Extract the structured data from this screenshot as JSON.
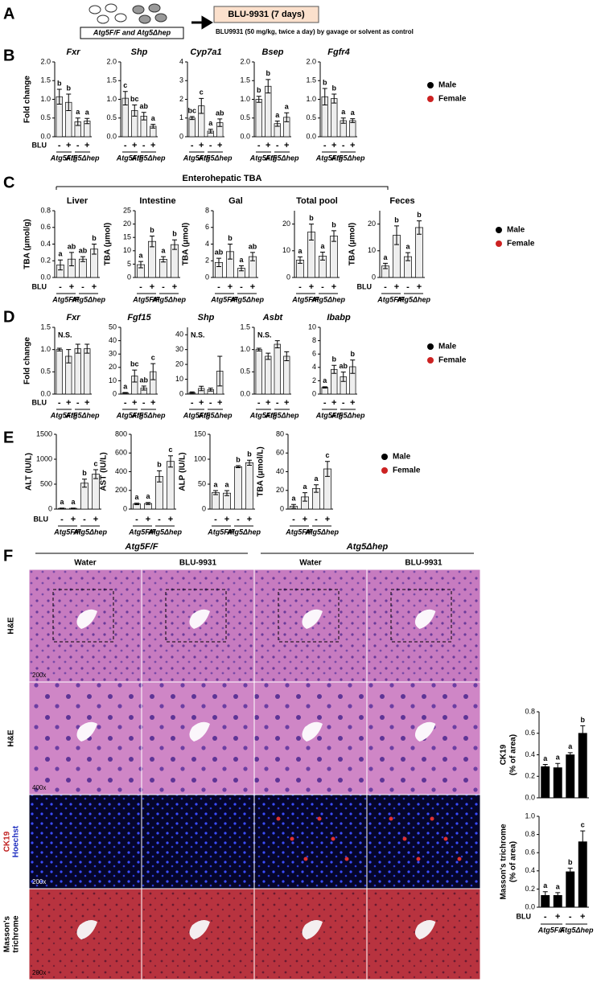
{
  "panel_labels": [
    "A",
    "B",
    "C",
    "D",
    "E",
    "F"
  ],
  "panel_a": {
    "mice_label": "Atg5F/F and Atg5Δhep",
    "treatment": "BLU-9931 (7 days)",
    "description": "BLU9931 (50 mg/kg, twice a day) by gavage or solvent as control"
  },
  "enterohepatic_label": "Enterohepatic TBA",
  "legends": [
    [
      {
        "name": "Male",
        "color": "#000000"
      },
      {
        "name": "Female",
        "color": "#cc2222"
      }
    ],
    [
      {
        "name": "Male",
        "color": "#000000"
      },
      {
        "name": "Female",
        "color": "#cc2222"
      }
    ],
    [
      {
        "name": "Male",
        "color": "#000000"
      },
      {
        "name": "Female",
        "color": "#cc2222"
      }
    ],
    [
      {
        "name": "Male",
        "color": "#000000"
      },
      {
        "name": "Female",
        "color": "#cc2222"
      }
    ]
  ],
  "histology": {
    "groups": [
      "Atg5F/F",
      "Atg5Δhep"
    ],
    "columns": [
      "Water",
      "BLU-9931",
      "Water",
      "BLU-9931"
    ],
    "rows": [
      {
        "label": [
          "H&E"
        ],
        "magnification": "200x"
      },
      {
        "label": [
          "H&E"
        ],
        "magnification": "400x"
      },
      {
        "label": [
          "CK19",
          "Hoechst"
        ],
        "magnification": "200x"
      },
      {
        "label": [
          "Masson's",
          "trichrome"
        ],
        "magnification": "200x"
      }
    ]
  },
  "chart_data": [
    {
      "type": "bar",
      "title": "Fxr",
      "ylabel": [
        "Fold change"
      ],
      "xlabel": "BLU",
      "categories": [
        "-",
        "+",
        "-",
        "+"
      ],
      "groups": [
        "Atg5F/F",
        "Atg5Δhep"
      ],
      "ylim": [
        0,
        2
      ],
      "yticks": [
        {
          "value": 0,
          "label": "0.0"
        },
        {
          "value": 0.5,
          "label": "0.5"
        },
        {
          "value": 1,
          "label": "1.0"
        },
        {
          "value": 1.5,
          "label": "1.5"
        },
        {
          "value": 2,
          "label": "2.0"
        }
      ],
      "values": [
        1.07,
        0.92,
        0.4,
        0.42
      ],
      "errors": [
        0.2,
        0.22,
        0.1,
        0.07
      ],
      "annotations": [
        "b",
        "b",
        "a",
        "a"
      ],
      "color": "#eeeeee"
    },
    {
      "type": "bar",
      "title": "Shp",
      "categories": [
        "-",
        "+",
        "-",
        "+"
      ],
      "groups": [
        "Atg5F/F",
        "Atg5Δhep"
      ],
      "ylim": [
        0,
        2
      ],
      "yticks": [
        {
          "value": 0,
          "label": "0.0"
        },
        {
          "value": 0.5,
          "label": "0.5"
        },
        {
          "value": 1,
          "label": "1.0"
        },
        {
          "value": 1.5,
          "label": "1.5"
        },
        {
          "value": 2,
          "label": "2.0"
        }
      ],
      "values": [
        1.03,
        0.7,
        0.55,
        0.28
      ],
      "errors": [
        0.18,
        0.15,
        0.1,
        0.05
      ],
      "annotations": [
        "c",
        "bc",
        "ab",
        "a"
      ],
      "color": "#eeeeee"
    },
    {
      "type": "bar",
      "title": "Cyp7a1",
      "categories": [
        "-",
        "+",
        "-",
        "+"
      ],
      "groups": [
        "Atg5F/F",
        "Atg5Δhep"
      ],
      "ylim": [
        0,
        4
      ],
      "yticks": [
        0,
        1,
        2,
        3,
        4
      ],
      "values": [
        1.0,
        1.65,
        0.3,
        0.75
      ],
      "errors": [
        0.08,
        0.4,
        0.1,
        0.2
      ],
      "annotations": [
        "bc",
        "c",
        "a",
        "ab"
      ],
      "color": "#eeeeee"
    },
    {
      "type": "bar",
      "title": "Bsep",
      "categories": [
        "-",
        "+",
        "-",
        "+"
      ],
      "groups": [
        "Atg5F/F",
        "Atg5Δhep"
      ],
      "ylim": [
        0,
        2
      ],
      "yticks": [
        {
          "value": 0,
          "label": "0.0"
        },
        {
          "value": 0.5,
          "label": "0.5"
        },
        {
          "value": 1,
          "label": "1.0"
        },
        {
          "value": 1.5,
          "label": "1.5"
        },
        {
          "value": 2,
          "label": "2.0"
        }
      ],
      "values": [
        1.0,
        1.35,
        0.35,
        0.52
      ],
      "errors": [
        0.08,
        0.18,
        0.07,
        0.12
      ],
      "annotations": [
        "b",
        "b",
        "a",
        "a"
      ],
      "color": "#eeeeee"
    },
    {
      "type": "bar",
      "title": "Fgfr4",
      "categories": [
        "-",
        "+",
        "-",
        "+"
      ],
      "groups": [
        "Atg5F/F",
        "Atg5Δhep"
      ],
      "ylim": [
        0,
        2
      ],
      "yticks": [
        {
          "value": 0,
          "label": "0.0"
        },
        {
          "value": 0.5,
          "label": "0.5"
        },
        {
          "value": 1,
          "label": "1.0"
        },
        {
          "value": 1.5,
          "label": "1.5"
        },
        {
          "value": 2,
          "label": "2.0"
        }
      ],
      "values": [
        1.07,
        1.02,
        0.43,
        0.43
      ],
      "errors": [
        0.22,
        0.12,
        0.07,
        0.05
      ],
      "annotations": [
        "b",
        "b",
        "a",
        "a"
      ],
      "color": "#eeeeee"
    },
    {
      "type": "bar",
      "title": "Liver",
      "ylabel": [
        "TBA (μmol/g)"
      ],
      "xlabel": "BLU",
      "categories": [
        "-",
        "+",
        "-",
        "+"
      ],
      "groups": [
        "Atg5F/F",
        "Atg5Δhep"
      ],
      "ylim": [
        0,
        0.8
      ],
      "yticks": [
        {
          "value": 0,
          "label": "0.0"
        },
        {
          "value": 0.2,
          "label": "0.2"
        },
        {
          "value": 0.4,
          "label": "0.4"
        },
        {
          "value": 0.6,
          "label": "0.6"
        },
        {
          "value": 0.8,
          "label": "0.8"
        }
      ],
      "values": [
        0.15,
        0.22,
        0.22,
        0.34
      ],
      "errors": [
        0.06,
        0.08,
        0.03,
        0.06
      ],
      "annotations": [
        "a",
        "ab",
        "ab",
        "b"
      ],
      "color": "#eeeeee"
    },
    {
      "type": "bar",
      "title": "Intestine",
      "ylabel": [
        "TBA (μmol)"
      ],
      "categories": [
        "-",
        "+",
        "-",
        "+"
      ],
      "groups": [
        "Atg5F/F",
        "Atg5Δhep"
      ],
      "ylim": [
        0,
        25
      ],
      "yticks": [
        0,
        5,
        10,
        15,
        20,
        25
      ],
      "values": [
        4.8,
        13.5,
        6.8,
        12.3
      ],
      "errors": [
        1.2,
        2,
        1,
        1.8
      ],
      "annotations": [
        "a",
        "b",
        "a",
        "b"
      ],
      "color": "#eeeeee"
    },
    {
      "type": "bar",
      "title": "Gal",
      "ylabel": [
        "TBA (μmol)"
      ],
      "categories": [
        "-",
        "+",
        "-",
        "+"
      ],
      "groups": [
        "Atg5F/F",
        "Atg5Δhep"
      ],
      "ylim": [
        0,
        8
      ],
      "yticks": [
        0,
        2,
        4,
        6,
        8
      ],
      "values": [
        1.8,
        3.1,
        1.1,
        2.5
      ],
      "errors": [
        0.5,
        0.9,
        0.3,
        0.5
      ],
      "annotations": [
        "ab",
        "b",
        "a",
        "ab"
      ],
      "color": "#eeeeee"
    },
    {
      "type": "bar",
      "title": "Total pool",
      "categories": [
        "-",
        "+",
        "-",
        "+"
      ],
      "groups": [
        "Atg5F/F",
        "Atg5Δhep"
      ],
      "ylim": [
        0,
        25
      ],
      "yticks": [
        0,
        10,
        20
      ],
      "values": [
        6.5,
        17,
        8,
        15.5
      ],
      "errors": [
        1.2,
        3,
        1.5,
        2
      ],
      "annotations": [
        "a",
        "b",
        "a",
        "b"
      ],
      "color": "#eeeeee"
    },
    {
      "type": "bar",
      "title": "Feces",
      "ylabel": [
        "TBA (μmol)"
      ],
      "xlabel": "BLU",
      "categories": [
        "-",
        "+",
        "-",
        "+"
      ],
      "groups": [
        "Atg5F/F",
        "Atg5Δhep"
      ],
      "ylim": [
        0,
        25
      ],
      "yticks": [
        0,
        10,
        20
      ],
      "values": [
        4.3,
        15.8,
        7.8,
        18.7
      ],
      "errors": [
        1,
        3.5,
        1.5,
        2.5
      ],
      "annotations": [
        "a",
        "b",
        "a",
        "b"
      ],
      "color": "#eeeeee"
    },
    {
      "type": "bar",
      "title": "Fxr",
      "ylabel": [
        "Fold change"
      ],
      "xlabel": "BLU",
      "annotation": "N.S.",
      "categories": [
        "-",
        "+",
        "-",
        "+"
      ],
      "groups": [
        "Atg5F/F",
        "Atg5Δhep"
      ],
      "ylim": [
        0,
        1.5
      ],
      "yticks": [
        {
          "value": 0,
          "label": "0.0"
        },
        {
          "value": 0.5,
          "label": "0.5"
        },
        {
          "value": 1,
          "label": "1.0"
        },
        {
          "value": 1.5,
          "label": "1.5"
        }
      ],
      "values": [
        1.0,
        0.85,
        1.02,
        1.02
      ],
      "errors": [
        0.03,
        0.15,
        0.1,
        0.1
      ],
      "color": "#eeeeee"
    },
    {
      "type": "bar",
      "title": "Fgf15",
      "categories": [
        "-",
        "+",
        "-",
        "+"
      ],
      "groups": [
        "Atg5F/F",
        "Atg5Δhep"
      ],
      "ylim": [
        0,
        50
      ],
      "yticks": [
        0,
        10,
        20,
        30,
        40,
        50
      ],
      "values": [
        0.9,
        13.5,
        4.5,
        16.8
      ],
      "errors": [
        0.3,
        4.5,
        1.5,
        6
      ],
      "annotations": [
        "a",
        "bc",
        "ab",
        "c"
      ],
      "color": "#eeeeee"
    },
    {
      "type": "bar",
      "title": "Shp",
      "annotation": "N.S.",
      "categories": [
        "-",
        "+",
        "-",
        "+"
      ],
      "groups": [
        "Atg5F/F",
        "Atg5Δhep"
      ],
      "ylim": [
        0,
        45
      ],
      "yticks": [
        0,
        10,
        20,
        30,
        40
      ],
      "values": [
        1,
        3.8,
        3,
        15.5
      ],
      "errors": [
        0.5,
        1.5,
        1,
        10
      ],
      "color": "#eeeeee"
    },
    {
      "type": "bar",
      "title": "Asbt",
      "annotation": "N.S.",
      "categories": [
        "-",
        "+",
        "-",
        "+"
      ],
      "groups": [
        "Atg5F/F",
        "Atg5Δhep"
      ],
      "ylim": [
        0,
        1.5
      ],
      "yticks": [
        {
          "value": 0,
          "label": "0.0"
        },
        {
          "value": 0.5,
          "label": "0.5"
        },
        {
          "value": 1,
          "label": "1.0"
        },
        {
          "value": 1.5,
          "label": "1.5"
        }
      ],
      "values": [
        1.0,
        0.85,
        1.12,
        0.85
      ],
      "errors": [
        0.03,
        0.07,
        0.08,
        0.1
      ],
      "color": "#eeeeee"
    },
    {
      "type": "bar",
      "title": "Ibabp",
      "categories": [
        "-",
        "+",
        "-",
        "+"
      ],
      "groups": [
        "Atg5F/F",
        "Atg5Δhep"
      ],
      "ylim": [
        0,
        10
      ],
      "yticks": [
        0,
        2,
        4,
        6,
        8,
        10
      ],
      "values": [
        1.0,
        3.7,
        2.6,
        4.1
      ],
      "errors": [
        0.1,
        0.6,
        0.7,
        1
      ],
      "annotations": [
        "a",
        "b",
        "ab",
        "b"
      ],
      "color": "#eeeeee"
    },
    {
      "type": "bar",
      "ylabel": [
        "ALT (IU/L)"
      ],
      "xlabel": "BLU",
      "categories": [
        "-",
        "+",
        "-",
        "+"
      ],
      "groups": [
        "Atg5F/F",
        "Atg5Δhep"
      ],
      "ylim": [
        0,
        1500
      ],
      "yticks": [
        0,
        500,
        1000,
        1500
      ],
      "values": [
        15,
        15,
        520,
        700
      ],
      "errors": [
        5,
        5,
        80,
        90
      ],
      "annotations": [
        "a",
        "a",
        "b",
        "c"
      ],
      "color": "#eeeeee"
    },
    {
      "type": "bar",
      "ylabel": [
        "AST (IU/L)"
      ],
      "categories": [
        "-",
        "+",
        "-",
        "+"
      ],
      "groups": [
        "Atg5F/F",
        "Atg5Δhep"
      ],
      "ylim": [
        0,
        800
      ],
      "yticks": [
        0,
        200,
        400,
        600,
        800
      ],
      "values": [
        55,
        60,
        350,
        510
      ],
      "errors": [
        8,
        10,
        60,
        60
      ],
      "annotations": [
        "a",
        "a",
        "b",
        "c"
      ],
      "color": "#eeeeee"
    },
    {
      "type": "bar",
      "ylabel": [
        "ALP (IU/L)"
      ],
      "categories": [
        "-",
        "+",
        "-",
        "+"
      ],
      "groups": [
        "Atg5F/F",
        "Atg5Δhep"
      ],
      "ylim": [
        0,
        150
      ],
      "yticks": [
        0,
        50,
        100,
        150
      ],
      "values": [
        33,
        32,
        85,
        93
      ],
      "errors": [
        4,
        5,
        2,
        5
      ],
      "annotations": [
        "a",
        "a",
        "b",
        "b"
      ],
      "color": "#eeeeee"
    },
    {
      "type": "bar",
      "ylabel": [
        "TBA (μmol/L)"
      ],
      "categories": [
        "-",
        "+",
        "-",
        "+"
      ],
      "groups": [
        "Atg5F/F",
        "Atg5Δhep"
      ],
      "ylim": [
        0,
        80
      ],
      "yticks": [
        0,
        20,
        40,
        60,
        80
      ],
      "values": [
        3,
        13,
        22,
        43
      ],
      "errors": [
        2,
        4.5,
        4,
        8
      ],
      "annotations": [
        "a",
        "a",
        "a",
        "c"
      ],
      "color": "#eeeeee"
    },
    {
      "type": "bar",
      "ylabel": [
        "CK19",
        "(% of area)"
      ],
      "ylim": [
        0,
        0.8
      ],
      "yticks": [
        {
          "value": 0,
          "label": "0.0"
        },
        {
          "value": 0.2,
          "label": "0.2"
        },
        {
          "value": 0.4,
          "label": "0.4"
        },
        {
          "value": 0.6,
          "label": "0.6"
        },
        {
          "value": 0.8,
          "label": "0.8"
        }
      ],
      "values": [
        0.29,
        0.28,
        0.4,
        0.6
      ],
      "errors": [
        0.02,
        0.04,
        0.02,
        0.07
      ],
      "annotations": [
        "a",
        "a",
        "a",
        "b"
      ],
      "color": "#000000"
    },
    {
      "type": "bar",
      "ylabel": [
        "Masson's trichrome",
        "(% of area)"
      ],
      "xlabel": "BLU",
      "categories": [
        "-",
        "+",
        "-",
        "+"
      ],
      "groups": [
        "Atg5F/F",
        "Atg5Δhep"
      ],
      "ylim": [
        0,
        1
      ],
      "yticks": [
        {
          "value": 0,
          "label": "0.0"
        },
        {
          "value": 0.2,
          "label": "0.2"
        },
        {
          "value": 0.4,
          "label": "0.4"
        },
        {
          "value": 0.6,
          "label": "0.6"
        },
        {
          "value": 0.8,
          "label": "0.8"
        },
        {
          "value": 1,
          "label": "1.0"
        }
      ],
      "values": [
        0.13,
        0.13,
        0.39,
        0.72
      ],
      "errors": [
        0.04,
        0.03,
        0.04,
        0.12
      ],
      "annotations": [
        "a",
        "a",
        "b",
        "c"
      ],
      "color": "#000000"
    }
  ]
}
